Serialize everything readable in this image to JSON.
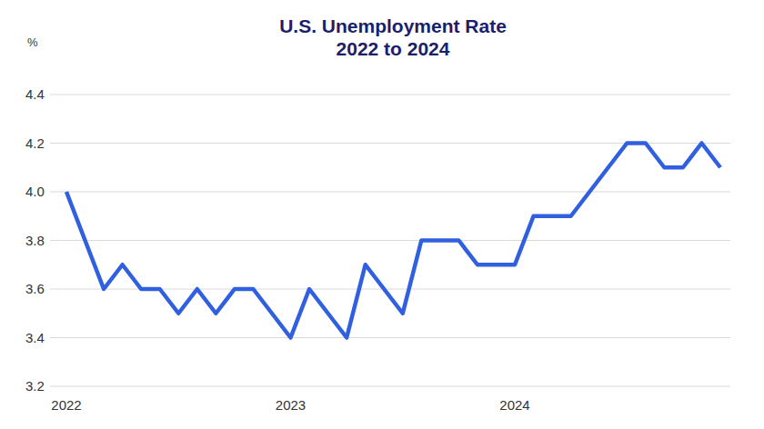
{
  "chart_data": {
    "type": "line",
    "title": "U.S. Unemployment Rate",
    "subtitle": "2022 to 2024",
    "y_label": "%",
    "categories": [
      "2022",
      null,
      null,
      null,
      null,
      null,
      null,
      null,
      null,
      null,
      null,
      null,
      "2023",
      null,
      null,
      null,
      null,
      null,
      null,
      null,
      null,
      null,
      null,
      null,
      "2024",
      null,
      null,
      null,
      null,
      null,
      null,
      null,
      null,
      null,
      null,
      null
    ],
    "values": [
      4.0,
      3.8,
      3.6,
      3.7,
      3.6,
      3.6,
      3.5,
      3.6,
      3.5,
      3.6,
      3.6,
      3.5,
      3.4,
      3.6,
      3.5,
      3.4,
      3.7,
      3.6,
      3.5,
      3.8,
      3.8,
      3.8,
      3.7,
      3.7,
      3.7,
      3.9,
      3.9,
      3.9,
      4.0,
      4.1,
      4.2,
      4.2,
      4.1,
      4.1,
      4.2,
      4.1
    ],
    "color": "#3060e0",
    "ylim": [
      3.2,
      4.4
    ],
    "yticks": [
      3.2,
      3.4,
      3.6,
      3.8,
      {
        "value": 4,
        "label": "4.0"
      },
      4.2,
      4.4
    ],
    "grid": true
  }
}
